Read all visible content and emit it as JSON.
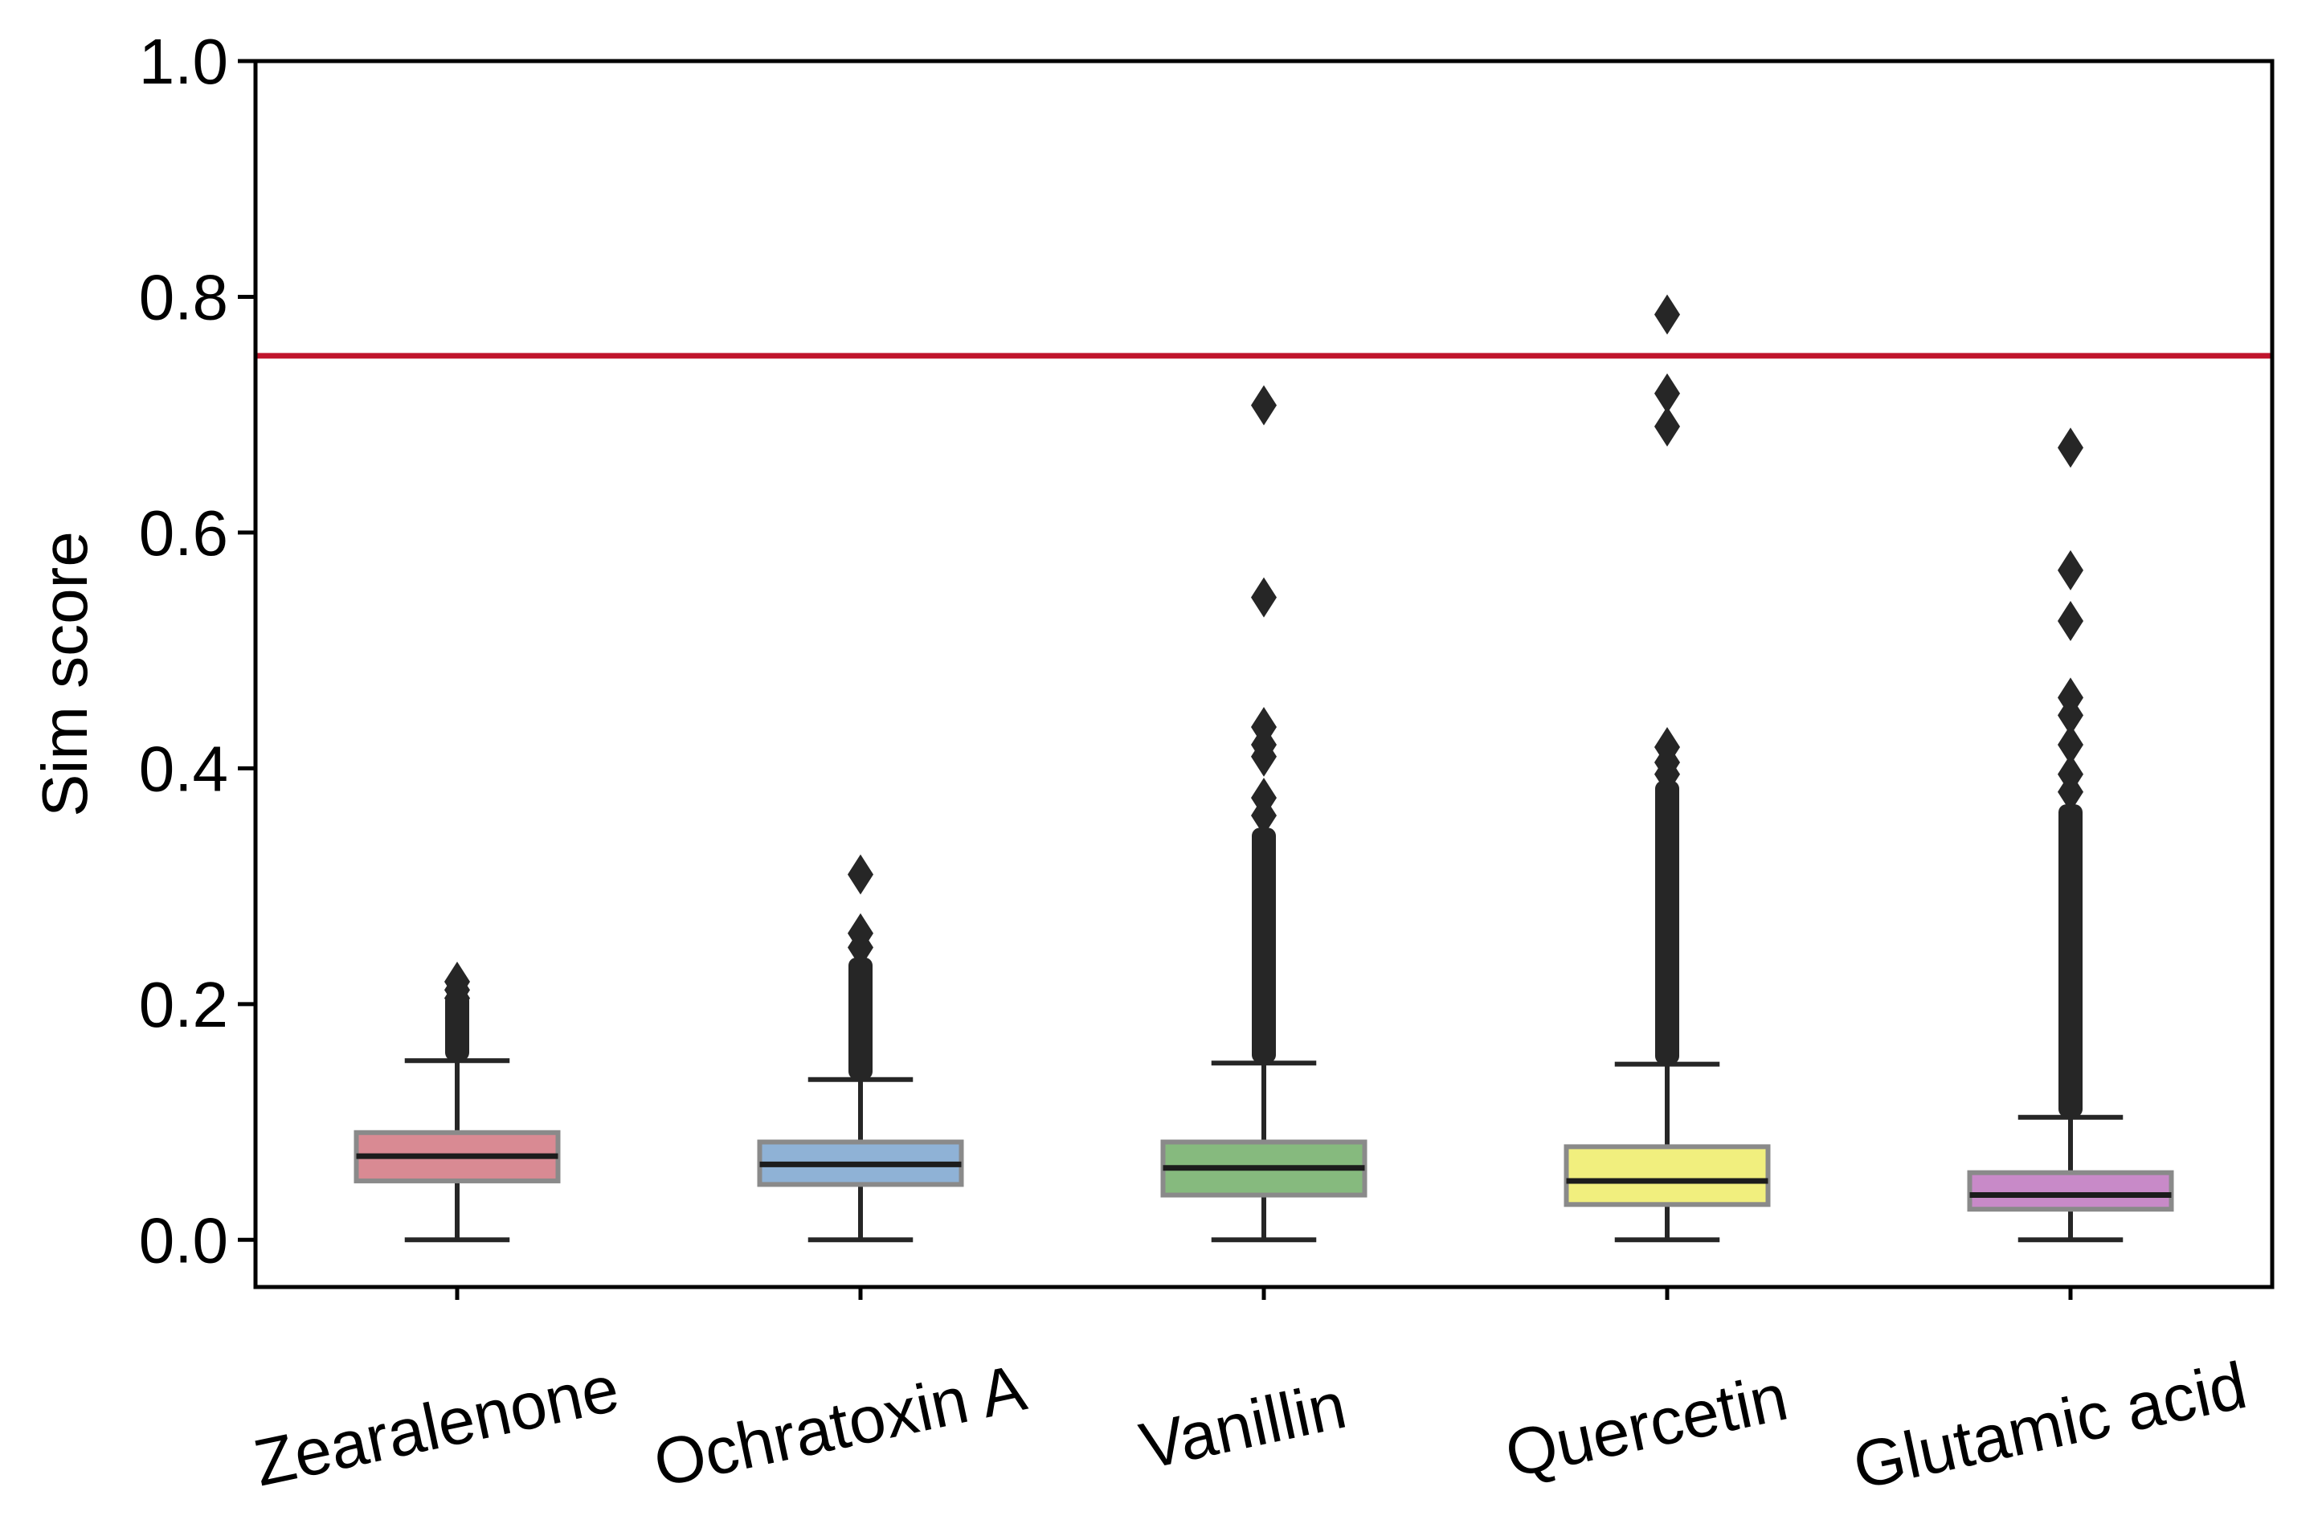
{
  "chart_data": {
    "type": "box",
    "ylabel": "Sim score",
    "ylim": [
      -0.04,
      1.0
    ],
    "yticks": [
      "0.0",
      "0.2",
      "0.4",
      "0.6",
      "0.8",
      "1.0"
    ],
    "grid": false,
    "threshold": {
      "value": 0.75,
      "color": "#c0142c"
    },
    "categories": [
      "Zearalenone",
      "Ochratoxin A",
      "Vanillin",
      "Quercetin",
      "Glutamic acid"
    ],
    "boxes": [
      {
        "name": "Zearalenone",
        "color": "#d98a93",
        "min": 0.0,
        "q1": 0.05,
        "median": 0.071,
        "q3": 0.091,
        "max": 0.152,
        "outliers_dense": [
          0.152,
          0.2
        ],
        "outliers": [
          0.205,
          0.212,
          0.219
        ]
      },
      {
        "name": "Ochratoxin A",
        "color": "#8fb2d6",
        "min": 0.0,
        "q1": 0.047,
        "median": 0.064,
        "q3": 0.083,
        "max": 0.136,
        "outliers_dense": [
          0.136,
          0.23
        ],
        "outliers": [
          0.248,
          0.26,
          0.31
        ]
      },
      {
        "name": "Vanillin",
        "color": "#86ba7e",
        "min": 0.0,
        "q1": 0.038,
        "median": 0.061,
        "q3": 0.083,
        "max": 0.15,
        "outliers_dense": [
          0.15,
          0.34
        ],
        "outliers": [
          0.36,
          0.375,
          0.41,
          0.42,
          0.435,
          0.545,
          0.708
        ]
      },
      {
        "name": "Quercetin",
        "color": "#f1ef7e",
        "min": 0.0,
        "q1": 0.03,
        "median": 0.05,
        "q3": 0.079,
        "max": 0.149,
        "outliers_dense": [
          0.149,
          0.38
        ],
        "outliers": [
          0.395,
          0.405,
          0.418,
          0.69,
          0.718,
          0.785
        ]
      },
      {
        "name": "Glutamic acid",
        "color": "#c88ac8",
        "min": 0.0,
        "q1": 0.026,
        "median": 0.038,
        "q3": 0.057,
        "max": 0.104,
        "outliers_dense": [
          0.104,
          0.36
        ],
        "outliers": [
          0.38,
          0.395,
          0.42,
          0.445,
          0.46,
          0.525,
          0.568,
          0.672
        ]
      }
    ]
  }
}
